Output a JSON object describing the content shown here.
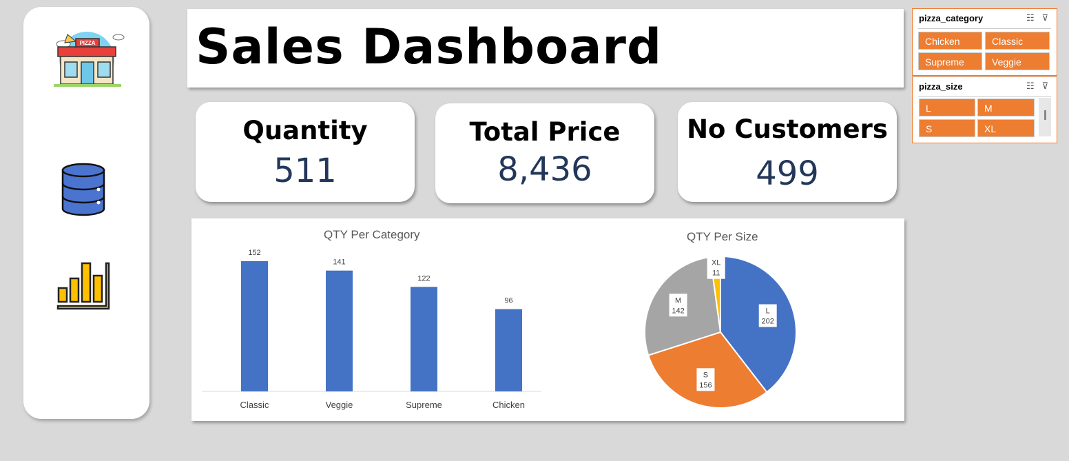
{
  "title": "Sales Dashboard",
  "sidebar": {
    "icons": [
      "pizza-shop-icon",
      "database-icon",
      "bar-chart-icon"
    ],
    "shop_sign": "PIZZA"
  },
  "kpis": [
    {
      "label": "Quantity",
      "value": "511"
    },
    {
      "label": "Total Price",
      "value": "8,436"
    },
    {
      "label": "No Customers",
      "value": "499"
    }
  ],
  "slicers": {
    "category": {
      "title": "pizza_category",
      "options": [
        "Chicken",
        "Classic",
        "Supreme",
        "Veggie"
      ]
    },
    "size": {
      "title": "pizza_size",
      "options": [
        "L",
        "M",
        "S",
        "XL"
      ]
    }
  },
  "colors": {
    "accent": "#ed7d31",
    "bar": "#4472c4",
    "kpi_value": "#23375b",
    "pie": {
      "L": "#4472c4",
      "S": "#ed7d31",
      "M": "#a5a5a5",
      "XL": "#ffc000"
    }
  },
  "chart_data": [
    {
      "type": "bar",
      "title": "QTY Per Category",
      "categories": [
        "Classic",
        "Veggie",
        "Supreme",
        "Chicken"
      ],
      "values": [
        152,
        141,
        122,
        96
      ],
      "ylim": [
        0,
        152
      ],
      "grid": false
    },
    {
      "type": "pie",
      "title": "QTY Per Size",
      "labels": [
        "L",
        "S",
        "M",
        "XL"
      ],
      "values": [
        202,
        156,
        142,
        11
      ]
    }
  ]
}
